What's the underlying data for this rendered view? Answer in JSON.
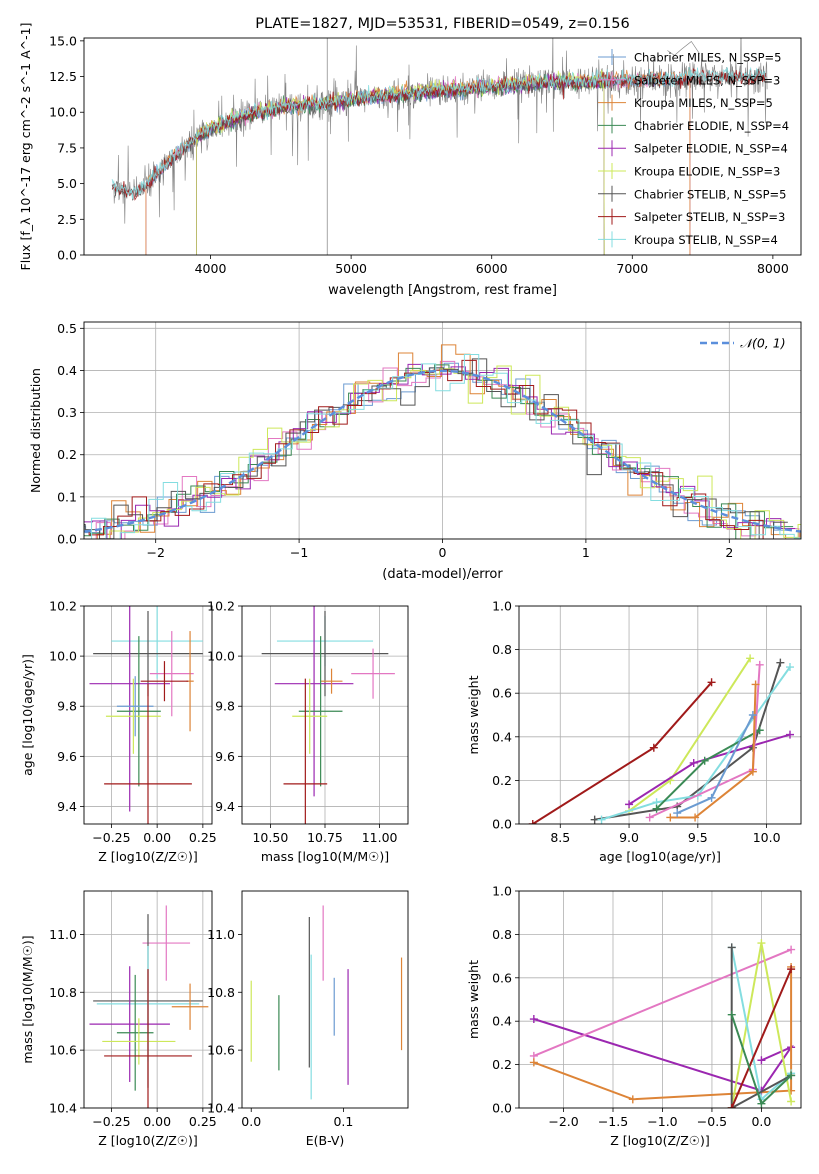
{
  "colors": {
    "chabrier_miles": "#6b9bd1",
    "salpeter_miles": "#e377c2",
    "kroupa_miles": "#dd8437",
    "chabrier_elodie": "#3b8a55",
    "salpeter_elodie": "#9b27b0",
    "kroupa_elodie": "#cde85a",
    "chabrier_stelib": "#555555",
    "salpeter_stelib": "#a01a1a",
    "kroupa_stelib": "#84dde0",
    "data_spectrum": "#808080",
    "gaussian": "#5b8fdc"
  },
  "chart_data": [
    {
      "type": "line",
      "title": "PLATE=1827, MJD=53531, FIBERID=0549, z=0.156",
      "xlabel": "wavelength [Angstrom, rest frame]",
      "ylabel": "Flux [f_λ 10^-17 erg cm^-2 s^-1 A^-1]",
      "xlim": [
        3100,
        8200
      ],
      "ylim": [
        0,
        15.2
      ],
      "xticks": [
        4000,
        5000,
        6000,
        7000,
        8000
      ],
      "xtick_labels": [
        "4000",
        "5000",
        "6000",
        "7000",
        "8000"
      ],
      "yticks": [
        0,
        2.5,
        5.0,
        7.5,
        10.0,
        12.5,
        15.0
      ],
      "ytick_labels": [
        "0.0",
        "2.5",
        "5.0",
        "7.5",
        "10.0",
        "12.5",
        "15.0"
      ],
      "legend": "top-right",
      "continuum": {
        "x": [
          3300,
          3400,
          3500,
          3600,
          3700,
          3800,
          3900,
          4000,
          4100,
          4200,
          4400,
          4600,
          4800,
          5000,
          5200,
          5400,
          5600,
          5800,
          6000,
          6200,
          6400,
          6600,
          6800,
          7000,
          7200,
          7400,
          7600,
          7800,
          7950
        ],
        "y": [
          4.8,
          4.4,
          4.5,
          5.5,
          6.5,
          7.5,
          8.2,
          8.8,
          9.2,
          9.6,
          10.1,
          10.5,
          10.6,
          10.9,
          11.1,
          11.3,
          11.5,
          11.6,
          11.8,
          11.9,
          12.1,
          12.1,
          12.2,
          12.3,
          12.3,
          12.4,
          12.5,
          12.4,
          12.6
        ]
      },
      "series": [
        {
          "name": "Chabrier MILES, N_SSP=5",
          "key": "chabrier_miles",
          "cutoff": [
            3540,
            7410
          ]
        },
        {
          "name": "Salpeter MILES, N_SSP=3",
          "key": "salpeter_miles",
          "cutoff": [
            3540,
            7410
          ]
        },
        {
          "name": "Kroupa MILES, N_SSP=5",
          "key": "kroupa_miles",
          "cutoff": [
            3540,
            7410
          ]
        },
        {
          "name": "Chabrier ELODIE, N_SSP=4",
          "key": "chabrier_elodie",
          "cutoff": [
            3900,
            6800
          ]
        },
        {
          "name": "Salpeter ELODIE, N_SSP=4",
          "key": "salpeter_elodie",
          "cutoff": [
            3900,
            6800
          ]
        },
        {
          "name": "Kroupa ELODIE, N_SSP=3",
          "key": "kroupa_elodie",
          "cutoff": [
            3900,
            6800
          ]
        },
        {
          "name": "Chabrier STELIB, N_SSP=5",
          "key": "chabrier_stelib",
          "cutoff": [
            3300,
            7950
          ]
        },
        {
          "name": "Salpeter STELIB, N_SSP=3",
          "key": "salpeter_stelib",
          "cutoff": [
            3300,
            7950
          ]
        },
        {
          "name": "Kroupa STELIB, N_SSP=4",
          "key": "kroupa_stelib",
          "cutoff": [
            3300,
            7950
          ]
        }
      ]
    },
    {
      "type": "line",
      "title": "",
      "xlabel": "(data-model)/error",
      "ylabel": "Normed distribution",
      "xlim": [
        -2.5,
        2.5
      ],
      "ylim": [
        0,
        0.515
      ],
      "xticks": [
        -2,
        -1,
        0,
        1,
        2
      ],
      "xtick_labels": [
        "−2",
        "−1",
        "0",
        "1",
        "2"
      ],
      "yticks": [
        0,
        0.1,
        0.2,
        0.3,
        0.4,
        0.5
      ],
      "ytick_labels": [
        "0.0",
        "0.1",
        "0.2",
        "0.3",
        "0.4",
        "0.5"
      ],
      "grid": true,
      "legend": "top-right",
      "gaussian_label": "𝒩(0, 1)",
      "bin_width": 0.1,
      "bin_start": -2.5
    },
    {
      "type": "scatter",
      "xlabel": "Z [log10(Z/Z☉)]",
      "ylabel": "age [log10(age/yr)]",
      "xlim": [
        -0.4,
        0.3
      ],
      "ylim": [
        9.33,
        10.2
      ],
      "xticks": [
        -0.25,
        0.0,
        0.25
      ],
      "xtick_labels": [
        "−0.25",
        "0.00",
        "0.25"
      ],
      "yticks": [
        9.4,
        9.6,
        9.8,
        10.0,
        10.2
      ],
      "ytick_labels": [
        "9.4",
        "9.6",
        "9.8",
        "10.0",
        "10.2"
      ],
      "grid": true,
      "points": [
        {
          "key": "kroupa_stelib",
          "x": 0.0,
          "y": 10.06,
          "xerr": 0.25,
          "yerr": 0.15
        },
        {
          "key": "chabrier_stelib",
          "x": -0.05,
          "y": 10.01,
          "xerr": 0.3,
          "yerr": 0.17
        },
        {
          "key": "salpeter_miles",
          "x": 0.08,
          "y": 9.93,
          "xerr": 0.12,
          "yerr": 0.17
        },
        {
          "key": "kroupa_miles",
          "x": 0.18,
          "y": 9.9,
          "xerr": 0.02,
          "yerr": 0.2
        },
        {
          "key": "salpeter_elodie",
          "x": -0.15,
          "y": 9.89,
          "xerr": 0.22,
          "yerr": 0.51
        },
        {
          "key": "salpeter_stelib",
          "x": 0.04,
          "y": 9.9,
          "xerr": 0.13,
          "yerr": 0.08
        },
        {
          "key": "chabrier_elodie",
          "x": -0.1,
          "y": 9.78,
          "xerr": 0.12,
          "yerr": 0.3
        },
        {
          "key": "kroupa_elodie",
          "x": -0.13,
          "y": 9.76,
          "xerr": 0.15,
          "yerr": 0.15
        },
        {
          "key": "chabrier_miles",
          "x": -0.12,
          "y": 9.8,
          "xerr": 0.1,
          "yerr": 0.12
        },
        {
          "key": "salpeter_stelib",
          "x": -0.05,
          "y": 9.49,
          "xerr": 0.24,
          "yerr": 0.4
        }
      ]
    },
    {
      "type": "scatter",
      "xlabel": "mass [log10(M/M☉)]",
      "ylabel": "",
      "xlim": [
        10.37,
        11.13
      ],
      "ylim": [
        9.33,
        10.2
      ],
      "xticks": [
        10.5,
        10.75,
        11.0
      ],
      "xtick_labels": [
        "10.50",
        "10.75",
        "11.00"
      ],
      "yticks": [
        9.4,
        9.6,
        9.8,
        10.0,
        10.2
      ],
      "ytick_labels": [
        "9.4",
        "9.6",
        "9.8",
        "10.0",
        "10.2"
      ],
      "grid": true,
      "points": [
        {
          "key": "kroupa_stelib",
          "x": 10.75,
          "y": 10.06,
          "xerr": 0.22,
          "yerr": 0.1
        },
        {
          "key": "chabrier_stelib",
          "x": 10.75,
          "y": 10.01,
          "xerr": 0.29,
          "yerr": 0.17
        },
        {
          "key": "salpeter_miles",
          "x": 10.97,
          "y": 9.93,
          "xerr": 0.1,
          "yerr": 0.1
        },
        {
          "key": "salpeter_elodie",
          "x": 10.7,
          "y": 9.89,
          "xerr": 0.18,
          "yerr": 0.45
        },
        {
          "key": "kroupa_miles",
          "x": 10.78,
          "y": 9.9,
          "xerr": 0.05,
          "yerr": 0.05
        },
        {
          "key": "chabrier_elodie",
          "x": 10.73,
          "y": 9.78,
          "xerr": 0.1,
          "yerr": 0.3
        },
        {
          "key": "kroupa_elodie",
          "x": 10.68,
          "y": 9.76,
          "xerr": 0.08,
          "yerr": 0.15
        },
        {
          "key": "salpeter_stelib",
          "x": 10.66,
          "y": 9.49,
          "xerr": 0.1,
          "yerr": 0.42
        }
      ]
    },
    {
      "type": "line",
      "xlabel": "age [log10(age/yr)]",
      "ylabel": "mass weight",
      "xlim": [
        8.2,
        10.25
      ],
      "ylim": [
        0,
        1.0
      ],
      "xticks": [
        8.5,
        9.0,
        9.5,
        10.0
      ],
      "xtick_labels": [
        "8.5",
        "9.0",
        "9.5",
        "10.0"
      ],
      "yticks": [
        0,
        0.2,
        0.4,
        0.6,
        0.8,
        1.0
      ],
      "ytick_labels": [
        "0.0",
        "0.2",
        "0.4",
        "0.6",
        "0.8",
        "1.0"
      ],
      "grid": true,
      "series": [
        {
          "key": "salpeter_stelib",
          "x": [
            8.3,
            9.18,
            9.6
          ],
          "y": [
            0.0,
            0.35,
            0.65
          ]
        },
        {
          "key": "kroupa_elodie",
          "x": [
            9.0,
            9.3,
            9.88
          ],
          "y": [
            0.06,
            0.2,
            0.76
          ]
        },
        {
          "key": "salpeter_elodie",
          "x": [
            9.0,
            9.47,
            10.17
          ],
          "y": [
            0.09,
            0.28,
            0.41
          ]
        },
        {
          "key": "chabrier_stelib",
          "x": [
            8.75,
            9.35,
            9.9,
            10.1
          ],
          "y": [
            0.02,
            0.08,
            0.35,
            0.74
          ]
        },
        {
          "key": "kroupa_stelib",
          "x": [
            8.8,
            9.2,
            9.5,
            10.17
          ],
          "y": [
            0.02,
            0.1,
            0.13,
            0.72
          ]
        },
        {
          "key": "chabrier_elodie",
          "x": [
            9.2,
            9.55,
            9.95
          ],
          "y": [
            0.07,
            0.29,
            0.43
          ]
        },
        {
          "key": "salpeter_miles",
          "x": [
            9.15,
            9.9,
            9.95
          ],
          "y": [
            0.03,
            0.25,
            0.73
          ]
        },
        {
          "key": "kroupa_miles",
          "x": [
            9.3,
            9.48,
            9.9,
            9.92
          ],
          "y": [
            0.03,
            0.03,
            0.24,
            0.64
          ]
        },
        {
          "key": "chabrier_miles",
          "x": [
            9.35,
            9.6,
            9.9
          ],
          "y": [
            0.05,
            0.12,
            0.5
          ]
        }
      ]
    },
    {
      "type": "scatter",
      "xlabel": "Z [log10(Z/Z☉)]",
      "ylabel": "mass [log10(M/M☉)]",
      "xlim": [
        -0.4,
        0.3
      ],
      "ylim": [
        10.4,
        11.15
      ],
      "xticks": [
        -0.25,
        0.0,
        0.25
      ],
      "xtick_labels": [
        "−0.25",
        "0.00",
        "0.25"
      ],
      "yticks": [
        10.4,
        10.6,
        10.8,
        11.0
      ],
      "ytick_labels": [
        "10.4",
        "10.6",
        "10.8",
        "11.0"
      ],
      "grid": true,
      "points": [
        {
          "key": "salpeter_miles",
          "x": 0.05,
          "y": 10.97,
          "xerr": 0.13,
          "yerr": 0.13
        },
        {
          "key": "chabrier_stelib",
          "x": -0.05,
          "y": 10.77,
          "xerr": 0.3,
          "yerr": 0.3
        },
        {
          "key": "kroupa_stelib",
          "x": -0.05,
          "y": 10.76,
          "xerr": 0.28,
          "yerr": 0.2
        },
        {
          "key": "kroupa_miles",
          "x": 0.18,
          "y": 10.75,
          "xerr": 0.1,
          "yerr": 0.08
        },
        {
          "key": "salpeter_elodie",
          "x": -0.15,
          "y": 10.69,
          "xerr": 0.22,
          "yerr": 0.2
        },
        {
          "key": "chabrier_elodie",
          "x": -0.12,
          "y": 10.66,
          "xerr": 0.1,
          "yerr": 0.2
        },
        {
          "key": "kroupa_elodie",
          "x": -0.1,
          "y": 10.63,
          "xerr": 0.2,
          "yerr": 0.08
        },
        {
          "key": "salpeter_stelib",
          "x": -0.05,
          "y": 10.58,
          "xerr": 0.24,
          "yerr": 0.3
        }
      ]
    },
    {
      "type": "scatter",
      "xlabel": "E(B-V)",
      "ylabel": "",
      "xlim": [
        -0.01,
        0.17
      ],
      "ylim": [
        10.4,
        11.15
      ],
      "xticks": [
        0.0,
        0.1
      ],
      "xtick_labels": [
        "0.0",
        "0.1"
      ],
      "yticks": [
        10.4,
        10.6,
        10.8,
        11.0
      ],
      "ytick_labels": [
        "10.4",
        "10.6",
        "10.8",
        "11.0"
      ],
      "grid": false,
      "points": [
        {
          "key": "kroupa_elodie",
          "x": 0.0,
          "y": 10.7,
          "yerr": 0.14
        },
        {
          "key": "chabrier_elodie",
          "x": 0.03,
          "y": 10.66,
          "yerr": 0.13
        },
        {
          "key": "chabrier_stelib",
          "x": 0.063,
          "y": 10.8,
          "yerr": 0.26
        },
        {
          "key": "kroupa_stelib",
          "x": 0.065,
          "y": 10.68,
          "yerr": 0.25
        },
        {
          "key": "salpeter_miles",
          "x": 0.078,
          "y": 10.97,
          "yerr": 0.13
        },
        {
          "key": "chabrier_miles",
          "x": 0.09,
          "y": 10.75,
          "yerr": 0.1
        },
        {
          "key": "salpeter_elodie",
          "x": 0.105,
          "y": 10.68,
          "yerr": 0.2
        },
        {
          "key": "kroupa_miles",
          "x": 0.163,
          "y": 10.76,
          "yerr": 0.16
        }
      ]
    },
    {
      "type": "line",
      "xlabel": "Z [log10(Z/Z☉)]",
      "ylabel": "mass weight",
      "xlim": [
        -2.45,
        0.4
      ],
      "ylim": [
        0,
        1.0
      ],
      "xticks": [
        -2.0,
        -1.5,
        -1.0,
        -0.5,
        0.0
      ],
      "xtick_labels": [
        "−2.0",
        "−1.5",
        "−1.0",
        "−0.5",
        "0.0"
      ],
      "yticks": [
        0,
        0.2,
        0.4,
        0.6,
        0.8,
        1.0
      ],
      "ytick_labels": [
        "0.0",
        "0.2",
        "0.4",
        "0.6",
        "0.8",
        "1.0"
      ],
      "grid": true,
      "series": [
        {
          "key": "salpeter_elodie",
          "x": [
            -2.3,
            0.0,
            0.3,
            0.0
          ],
          "y": [
            0.41,
            0.08,
            0.28,
            0.22
          ]
        },
        {
          "key": "salpeter_miles",
          "x": [
            -2.3,
            0.3
          ],
          "y": [
            0.24,
            0.73
          ]
        },
        {
          "key": "kroupa_miles",
          "x": [
            -2.3,
            -1.3,
            0.3,
            0.3
          ],
          "y": [
            0.21,
            0.04,
            0.08,
            0.65
          ]
        },
        {
          "key": "kroupa_elodie",
          "x": [
            -0.3,
            0.0,
            0.3
          ],
          "y": [
            0.0,
            0.76,
            0.03
          ]
        },
        {
          "key": "kroupa_stelib",
          "x": [
            -0.3,
            0.0,
            0.3
          ],
          "y": [
            0.74,
            0.04,
            0.16
          ]
        },
        {
          "key": "chabrier_stelib",
          "x": [
            -0.3,
            -0.3,
            0.3
          ],
          "y": [
            0.74,
            0.0,
            0.15
          ]
        },
        {
          "key": "salpeter_stelib",
          "x": [
            -0.3,
            0.3
          ],
          "y": [
            0.0,
            0.64
          ]
        },
        {
          "key": "chabrier_elodie",
          "x": [
            -0.3,
            0.0,
            0.3
          ],
          "y": [
            0.43,
            0.02,
            0.15
          ]
        }
      ]
    }
  ]
}
